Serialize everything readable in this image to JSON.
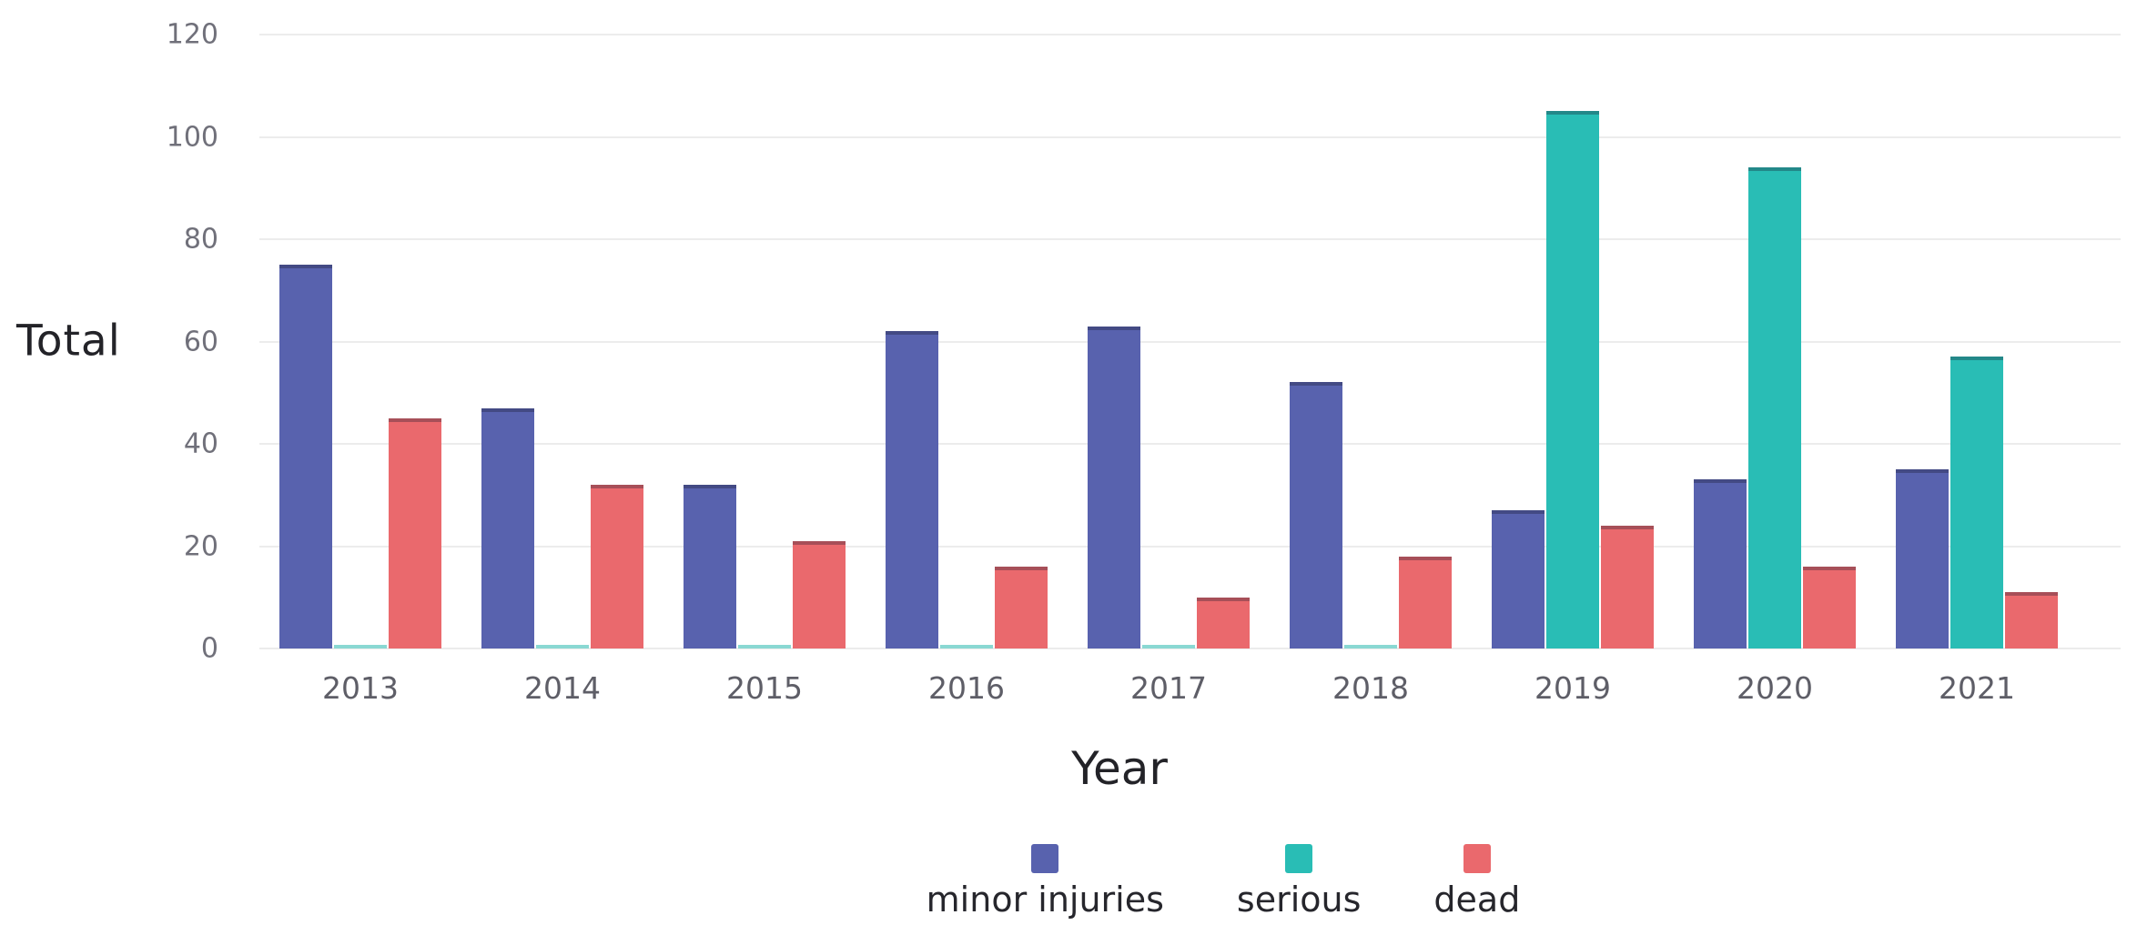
{
  "chart_data": {
    "type": "bar",
    "title": "",
    "categories": [
      "2013",
      "2014",
      "2015",
      "2016",
      "2017",
      "2018",
      "2019",
      "2020",
      "2021"
    ],
    "series": [
      {
        "name": "minor injuries",
        "color": "#5862ae",
        "values": [
          75,
          47,
          32,
          62,
          63,
          52,
          27,
          33,
          35
        ]
      },
      {
        "name": "serious",
        "color": "#29bdb5",
        "tiny_color": "#8ad8d3",
        "values": [
          0.5,
          0.5,
          0.5,
          0.5,
          0.5,
          0.5,
          105,
          94,
          57
        ]
      },
      {
        "name": "dead",
        "color": "#ea696d",
        "values": [
          45,
          32,
          21,
          16,
          10,
          18,
          24,
          16,
          11
        ]
      }
    ],
    "xlabel": "Year",
    "ylabel": "Total",
    "ylim": [
      0,
      120
    ],
    "yticks": [
      0,
      20,
      40,
      60,
      80,
      100,
      120
    ],
    "grid": true,
    "legend_position": "bottom",
    "colors": {
      "background": "#ffffff",
      "gridline": "#ececec",
      "tick_text": "#70707a",
      "category_text": "#5e5e67",
      "axis_title_text": "#232328",
      "legend_text": "#26262c"
    }
  }
}
